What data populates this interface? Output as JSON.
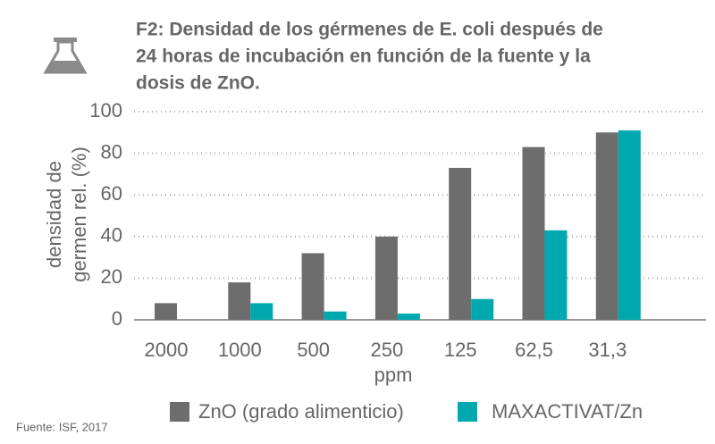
{
  "chart_data": {
    "type": "bar",
    "title": [
      "F2: Densidad de los gérmenes de E. coli después de",
      "24 horas de incubación en función de la fuente y la",
      "dosis de ZnO."
    ],
    "y_label": [
      "densidad de",
      "germen rel. (%)"
    ],
    "x_label": "ppm",
    "source": "Fuente: ISF, 2017",
    "categories": [
      "2000",
      "1000",
      "500",
      "250",
      "125",
      "62,5",
      "31,3"
    ],
    "series": [
      {
        "name": "ZnO (grado alimenticio)",
        "color": "#6d6d6d",
        "values": [
          8,
          18,
          32,
          40,
          73,
          83,
          90
        ]
      },
      {
        "name": "MAXACTIVAT/Zn",
        "color": "#00a9b0",
        "values": [
          0,
          8,
          4,
          3,
          10,
          43,
          91
        ]
      }
    ],
    "ylim": [
      0,
      100
    ],
    "yticks": [
      0,
      20,
      40,
      60,
      80,
      100
    ],
    "grid": true
  }
}
